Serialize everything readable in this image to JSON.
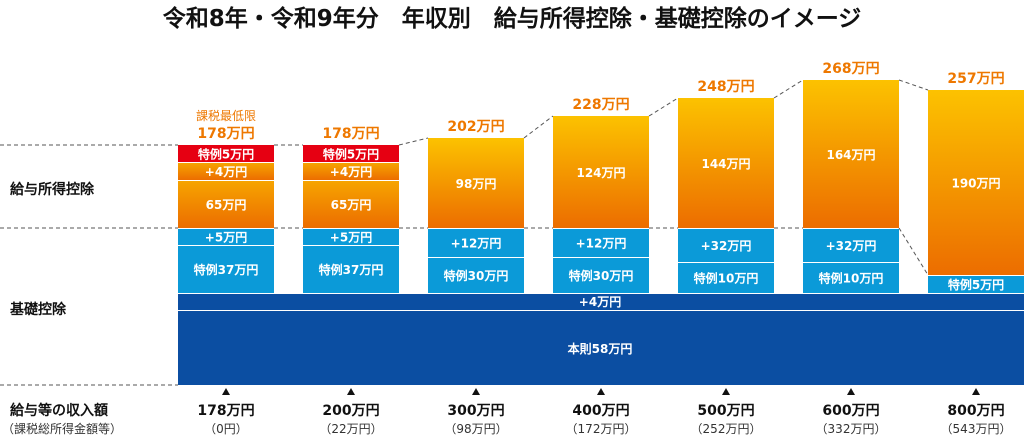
{
  "chart_data": {
    "type": "bar",
    "stacked": true,
    "title": "令和8年・令和9年分　年収別　給与所得控除・基礎控除のイメージ",
    "row_labels": {
      "salary_deduction": "給与所得控除",
      "basic_deduction": "基礎控除",
      "income": "給与等の収入額",
      "income_sub": "（課税総所得金額等）"
    },
    "threshold_note": "課税最低限",
    "colors": {
      "special_red": "#e60012",
      "orange_top": "#fcc200",
      "orange_bottom": "#ec6d00",
      "light_blue": "#0b9ad8",
      "dark_blue": "#0b4ea2",
      "total_text": "#ee7800"
    },
    "base": {
      "extra": {
        "label": "+4万円",
        "value": 4
      },
      "main": {
        "label": "本則58万円",
        "value": 58
      }
    },
    "columns": [
      {
        "income": "178万円",
        "taxable": "（0円）",
        "total": "178万円",
        "note": true,
        "salary": [
          {
            "label": "特例5万円",
            "value": 5,
            "kind": "red"
          },
          {
            "label": "+4万円",
            "value": 4,
            "kind": "orange"
          },
          {
            "label": "65万円",
            "value": 65,
            "kind": "orange"
          }
        ],
        "basic": [
          {
            "label": "+5万円",
            "value": 5
          },
          {
            "label": "特例37万円",
            "value": 37
          }
        ]
      },
      {
        "income": "200万円",
        "taxable": "（22万円）",
        "total": "178万円",
        "salary": [
          {
            "label": "特例5万円",
            "value": 5,
            "kind": "red"
          },
          {
            "label": "+4万円",
            "value": 4,
            "kind": "orange"
          },
          {
            "label": "65万円",
            "value": 65,
            "kind": "orange"
          }
        ],
        "basic": [
          {
            "label": "+5万円",
            "value": 5
          },
          {
            "label": "特例37万円",
            "value": 37
          }
        ]
      },
      {
        "income": "300万円",
        "taxable": "（98万円）",
        "total": "202万円",
        "salary": [
          {
            "label": "98万円",
            "value": 98,
            "kind": "orange"
          }
        ],
        "basic": [
          {
            "label": "+12万円",
            "value": 12
          },
          {
            "label": "特例30万円",
            "value": 30
          }
        ]
      },
      {
        "income": "400万円",
        "taxable": "（172万円）",
        "total": "228万円",
        "salary": [
          {
            "label": "124万円",
            "value": 124,
            "kind": "orange"
          }
        ],
        "basic": [
          {
            "label": "+12万円",
            "value": 12
          },
          {
            "label": "特例30万円",
            "value": 30
          }
        ]
      },
      {
        "income": "500万円",
        "taxable": "（252万円）",
        "total": "248万円",
        "salary": [
          {
            "label": "144万円",
            "value": 144,
            "kind": "orange"
          }
        ],
        "basic": [
          {
            "label": "+32万円",
            "value": 32
          },
          {
            "label": "特例10万円",
            "value": 10
          }
        ]
      },
      {
        "income": "600万円",
        "taxable": "（332万円）",
        "total": "268万円",
        "salary": [
          {
            "label": "164万円",
            "value": 164,
            "kind": "orange"
          }
        ],
        "basic": [
          {
            "label": "+32万円",
            "value": 32
          },
          {
            "label": "特例10万円",
            "value": 10
          }
        ]
      },
      {
        "income": "800万円",
        "taxable": "（543万円）",
        "total": "257万円",
        "salary": [
          {
            "label": "190万円",
            "value": 190,
            "kind": "orange"
          }
        ],
        "basic": [
          {
            "label": "特例5万円",
            "value": 5
          }
        ]
      }
    ]
  }
}
